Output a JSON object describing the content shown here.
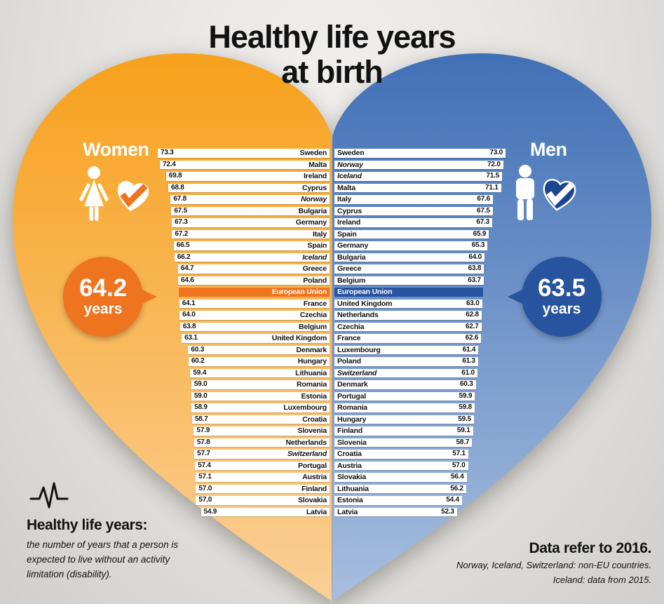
{
  "title": {
    "line1": "Healthy life years",
    "line2": "at birth"
  },
  "women": {
    "label": "Women",
    "callout_value": "64.2",
    "callout_unit": "years"
  },
  "men": {
    "label": "Men",
    "callout_value": "63.5",
    "callout_unit": "years"
  },
  "footnotes": {
    "note_title": "Healthy life years:",
    "note_body": "the number of years that a person is expected to live without an activity limitation (disability).",
    "source_title": "Data refer to 2016.",
    "source_note1": "Norway, Iceland, Switzerland: non-EU countries.",
    "source_note2": "Iceland: data from 2015."
  },
  "icons": {
    "woman": "woman-icon",
    "man": "man-icon",
    "women_check": "check-heart-icon",
    "men_check": "check-heart-icon",
    "pulse": "pulse-icon"
  },
  "colors": {
    "women_accent": "#ee7420",
    "men_accent": "#27539f",
    "men_badge": "#1c4491",
    "women_heart_top": "#f7a11c",
    "women_heart_bottom": "#fbcf96",
    "men_heart_top": "#4070b6",
    "men_heart_bottom": "#a8bedf",
    "bar_fill": "#ffffff",
    "bar_text": "#111111"
  },
  "chart_data": {
    "type": "bar",
    "orientation": "horizontal",
    "title": "Healthy life years at birth",
    "unit": "years",
    "value_range": [
      0,
      73.3
    ],
    "grid": false,
    "legend_position": "none",
    "series": [
      {
        "name": "Women",
        "average": 64.2,
        "rows": [
          {
            "country": "Sweden",
            "value": 73.3
          },
          {
            "country": "Malta",
            "value": 72.4
          },
          {
            "country": "Ireland",
            "value": 69.8
          },
          {
            "country": "Cyprus",
            "value": 68.8
          },
          {
            "country": "Norway",
            "value": 67.8,
            "italic": true
          },
          {
            "country": "Bulgaria",
            "value": 67.5
          },
          {
            "country": "Germany",
            "value": 67.3
          },
          {
            "country": "Italy",
            "value": 67.2
          },
          {
            "country": "Spain",
            "value": 66.5
          },
          {
            "country": "Iceland",
            "value": 66.2,
            "italic": true
          },
          {
            "country": "Greece",
            "value": 64.7
          },
          {
            "country": "Poland",
            "value": 64.6
          },
          {
            "country": "European Union",
            "value": 64.2,
            "highlight": true
          },
          {
            "country": "France",
            "value": 64.1
          },
          {
            "country": "Czechia",
            "value": 64.0
          },
          {
            "country": "Belgium",
            "value": 63.8
          },
          {
            "country": "United Kingdom",
            "value": 63.1
          },
          {
            "country": "Denmark",
            "value": 60.3
          },
          {
            "country": "Hungary",
            "value": 60.2
          },
          {
            "country": "Lithuania",
            "value": 59.4
          },
          {
            "country": "Romania",
            "value": 59.0
          },
          {
            "country": "Estonia",
            "value": 59.0
          },
          {
            "country": "Luxembourg",
            "value": 58.9
          },
          {
            "country": "Croatia",
            "value": 58.7
          },
          {
            "country": "Slovenia",
            "value": 57.9
          },
          {
            "country": "Netherlands",
            "value": 57.8
          },
          {
            "country": "Switzerland",
            "value": 57.7,
            "italic": true
          },
          {
            "country": "Portugal",
            "value": 57.4
          },
          {
            "country": "Austria",
            "value": 57.1
          },
          {
            "country": "Finland",
            "value": 57.0
          },
          {
            "country": "Slovakia",
            "value": 57.0
          },
          {
            "country": "Latvia",
            "value": 54.9
          }
        ]
      },
      {
        "name": "Men",
        "average": 63.5,
        "rows": [
          {
            "country": "Sweden",
            "value": 73.0
          },
          {
            "country": "Norway",
            "value": 72.0,
            "italic": true
          },
          {
            "country": "Iceland",
            "value": 71.5,
            "italic": true
          },
          {
            "country": "Malta",
            "value": 71.1
          },
          {
            "country": "Italy",
            "value": 67.6
          },
          {
            "country": "Cyprus",
            "value": 67.5
          },
          {
            "country": "Ireland",
            "value": 67.3
          },
          {
            "country": "Spain",
            "value": 65.9
          },
          {
            "country": "Germany",
            "value": 65.3
          },
          {
            "country": "Bulgaria",
            "value": 64.0
          },
          {
            "country": "Greece",
            "value": 63.8
          },
          {
            "country": "Belgium",
            "value": 63.7
          },
          {
            "country": "European Union",
            "value": 63.5,
            "highlight": true
          },
          {
            "country": "United Kingdom",
            "value": 63.0
          },
          {
            "country": "Netherlands",
            "value": 62.8
          },
          {
            "country": "Czechia",
            "value": 62.7
          },
          {
            "country": "France",
            "value": 62.6
          },
          {
            "country": "Luxembourg",
            "value": 61.4
          },
          {
            "country": "Poland",
            "value": 61.3
          },
          {
            "country": "Switzerland",
            "value": 61.0,
            "italic": true
          },
          {
            "country": "Denmark",
            "value": 60.3
          },
          {
            "country": "Portugal",
            "value": 59.9
          },
          {
            "country": "Romania",
            "value": 59.8
          },
          {
            "country": "Hungary",
            "value": 59.5
          },
          {
            "country": "Finland",
            "value": 59.1
          },
          {
            "country": "Slovenia",
            "value": 58.7
          },
          {
            "country": "Croatia",
            "value": 57.1
          },
          {
            "country": "Austria",
            "value": 57.0
          },
          {
            "country": "Slovakia",
            "value": 56.4
          },
          {
            "country": "Lithuania",
            "value": 56.2
          },
          {
            "country": "Estonia",
            "value": 54.4
          },
          {
            "country": "Latvia",
            "value": 52.3
          }
        ]
      }
    ]
  }
}
